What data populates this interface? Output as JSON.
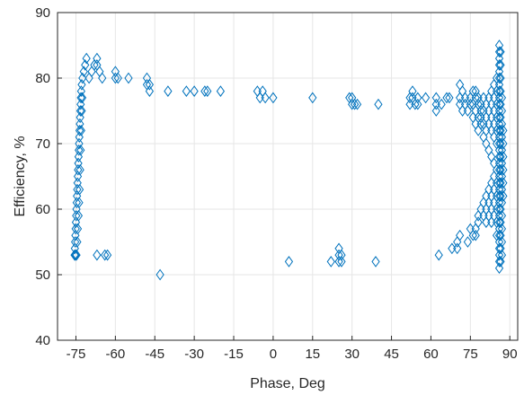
{
  "chart_data": {
    "type": "scatter",
    "title": "",
    "xlabel": "Phase, Deg",
    "ylabel": "Efficiency, %",
    "xlim": [
      -82,
      93
    ],
    "ylim": [
      40,
      90
    ],
    "xticks": [
      -75,
      -60,
      -45,
      -30,
      -15,
      0,
      15,
      30,
      45,
      60,
      75,
      90
    ],
    "xtick_labels": [
      "-75",
      "-60",
      "-45",
      "-30",
      "-15",
      "0",
      "15",
      "30",
      "45",
      "60",
      "75",
      "90"
    ],
    "yticks": [
      40,
      50,
      60,
      70,
      80,
      90
    ],
    "ytick_labels": [
      "40",
      "50",
      "60",
      "70",
      "80",
      "90"
    ],
    "grid": true,
    "marker": "diamond",
    "marker_color": "#0072BD",
    "series": [
      {
        "name": "",
        "points": [
          [
            -75.5,
            53
          ],
          [
            -75.4,
            54
          ],
          [
            -75.3,
            55
          ],
          [
            -75.2,
            56
          ],
          [
            -75.1,
            57
          ],
          [
            -75.0,
            58
          ],
          [
            -74.9,
            59
          ],
          [
            -74.8,
            60
          ],
          [
            -74.7,
            61
          ],
          [
            -74.6,
            62
          ],
          [
            -74.5,
            63
          ],
          [
            -74.4,
            64
          ],
          [
            -74.3,
            65
          ],
          [
            -74.2,
            66
          ],
          [
            -74.1,
            67
          ],
          [
            -74.0,
            68
          ],
          [
            -73.9,
            69
          ],
          [
            -73.8,
            70
          ],
          [
            -73.7,
            71
          ],
          [
            -73.6,
            72
          ],
          [
            -73.5,
            73
          ],
          [
            -73.4,
            74
          ],
          [
            -73.3,
            75
          ],
          [
            -73.2,
            76
          ],
          [
            -73.1,
            77
          ],
          [
            -73.0,
            78
          ],
          [
            -72.8,
            79
          ],
          [
            -72.5,
            80
          ],
          [
            -75.2,
            53
          ],
          [
            -74.8,
            53
          ],
          [
            -74.5,
            55
          ],
          [
            -74.3,
            57
          ],
          [
            -74.0,
            59
          ],
          [
            -73.8,
            61
          ],
          [
            -73.6,
            63
          ],
          [
            -73.4,
            66
          ],
          [
            -73.2,
            69
          ],
          [
            -73.0,
            72
          ],
          [
            -72.8,
            75
          ],
          [
            -72.6,
            77
          ],
          [
            -72,
            81
          ],
          [
            -71.5,
            82
          ],
          [
            -71,
            83
          ],
          [
            -70,
            80
          ],
          [
            -69,
            81
          ],
          [
            -68,
            82
          ],
          [
            -67,
            82
          ],
          [
            -67,
            83
          ],
          [
            -66,
            81
          ],
          [
            -65,
            80
          ],
          [
            -67,
            53
          ],
          [
            -64,
            53
          ],
          [
            -63,
            53
          ],
          [
            -60,
            80
          ],
          [
            -60,
            81
          ],
          [
            -59,
            80
          ],
          [
            -55,
            80
          ],
          [
            -48,
            80
          ],
          [
            -48,
            79
          ],
          [
            -47,
            79
          ],
          [
            -47,
            78
          ],
          [
            -43,
            50
          ],
          [
            -40,
            78
          ],
          [
            -33,
            78
          ],
          [
            -30,
            78
          ],
          [
            -26,
            78
          ],
          [
            -25,
            78
          ],
          [
            -20,
            78
          ],
          [
            -6,
            78
          ],
          [
            -5,
            77
          ],
          [
            -4,
            78
          ],
          [
            -3,
            77
          ],
          [
            0,
            77
          ],
          [
            6,
            52
          ],
          [
            15,
            77
          ],
          [
            22,
            52
          ],
          [
            25,
            52
          ],
          [
            25,
            53
          ],
          [
            25,
            54
          ],
          [
            26,
            53
          ],
          [
            26,
            52
          ],
          [
            29,
            77
          ],
          [
            30,
            77
          ],
          [
            30,
            76
          ],
          [
            31,
            76
          ],
          [
            32,
            76
          ],
          [
            39,
            52
          ],
          [
            40,
            76
          ],
          [
            52,
            77
          ],
          [
            52,
            76
          ],
          [
            53,
            78
          ],
          [
            53,
            77
          ],
          [
            54,
            76
          ],
          [
            55,
            76
          ],
          [
            55,
            77
          ],
          [
            58,
            77
          ],
          [
            62,
            77
          ],
          [
            62,
            76
          ],
          [
            62,
            75
          ],
          [
            63,
            53
          ],
          [
            64,
            76
          ],
          [
            66,
            77
          ],
          [
            67,
            77
          ],
          [
            68,
            54
          ],
          [
            70,
            54
          ],
          [
            70,
            55
          ],
          [
            71,
            76
          ],
          [
            71,
            77
          ],
          [
            71,
            79
          ],
          [
            71,
            56
          ],
          [
            72,
            78
          ],
          [
            72,
            75
          ],
          [
            73,
            77
          ],
          [
            73,
            76
          ],
          [
            74,
            75
          ],
          [
            74,
            55
          ],
          [
            75,
            77
          ],
          [
            75,
            76
          ],
          [
            75,
            57
          ],
          [
            76,
            78
          ],
          [
            76,
            76
          ],
          [
            76,
            74
          ],
          [
            76,
            56
          ],
          [
            77,
            78
          ],
          [
            77,
            77
          ],
          [
            77,
            75
          ],
          [
            77,
            73
          ],
          [
            77,
            57
          ],
          [
            77,
            56
          ],
          [
            78,
            77
          ],
          [
            78,
            76
          ],
          [
            78,
            74
          ],
          [
            78,
            72
          ],
          [
            78,
            59
          ],
          [
            78,
            58
          ],
          [
            79,
            76
          ],
          [
            79,
            75
          ],
          [
            79,
            74
          ],
          [
            79,
            73
          ],
          [
            79,
            60
          ],
          [
            80,
            77
          ],
          [
            80,
            75
          ],
          [
            80,
            73
          ],
          [
            80,
            71
          ],
          [
            80,
            61
          ],
          [
            80,
            59
          ],
          [
            81,
            76
          ],
          [
            81,
            74
          ],
          [
            81,
            72
          ],
          [
            81,
            70
          ],
          [
            81,
            62
          ],
          [
            81,
            60
          ],
          [
            81,
            58
          ],
          [
            82,
            77
          ],
          [
            82,
            75
          ],
          [
            82,
            73
          ],
          [
            82,
            69
          ],
          [
            82,
            63
          ],
          [
            82,
            61
          ],
          [
            82,
            59
          ],
          [
            83,
            78
          ],
          [
            83,
            76
          ],
          [
            83,
            74
          ],
          [
            83,
            72
          ],
          [
            83,
            68
          ],
          [
            83,
            64
          ],
          [
            83,
            62
          ],
          [
            83,
            60
          ],
          [
            83,
            58
          ],
          [
            84,
            79
          ],
          [
            84,
            77
          ],
          [
            84,
            75
          ],
          [
            84,
            73
          ],
          [
            84,
            71
          ],
          [
            84,
            67
          ],
          [
            84,
            65
          ],
          [
            84,
            63
          ],
          [
            84,
            61
          ],
          [
            84,
            59
          ],
          [
            85,
            80
          ],
          [
            85,
            78
          ],
          [
            85,
            76
          ],
          [
            85,
            74
          ],
          [
            85,
            72
          ],
          [
            85,
            70
          ],
          [
            85,
            66
          ],
          [
            85,
            64
          ],
          [
            85,
            62
          ],
          [
            85,
            60
          ],
          [
            85,
            58
          ],
          [
            85,
            56
          ],
          [
            86,
            85
          ],
          [
            86,
            84
          ],
          [
            86,
            83
          ],
          [
            86,
            82
          ],
          [
            86,
            81
          ],
          [
            86,
            80
          ],
          [
            86,
            79
          ],
          [
            86,
            78
          ],
          [
            86,
            77
          ],
          [
            86,
            76
          ],
          [
            86,
            75
          ],
          [
            86,
            74
          ],
          [
            86,
            73
          ],
          [
            86,
            72
          ],
          [
            86,
            71
          ],
          [
            86,
            70
          ],
          [
            86,
            69
          ],
          [
            86,
            68
          ],
          [
            86,
            67
          ],
          [
            86,
            66
          ],
          [
            86,
            65
          ],
          [
            86,
            64
          ],
          [
            86,
            63
          ],
          [
            86,
            62
          ],
          [
            86,
            61
          ],
          [
            86,
            60
          ],
          [
            86,
            59
          ],
          [
            86,
            58
          ],
          [
            86,
            57
          ],
          [
            86,
            56
          ],
          [
            86,
            55
          ],
          [
            86,
            54
          ],
          [
            86,
            53
          ],
          [
            86,
            52
          ],
          [
            86,
            51
          ],
          [
            86.5,
            84
          ],
          [
            86.5,
            82
          ],
          [
            86.5,
            80
          ],
          [
            86.5,
            78
          ],
          [
            86.5,
            76
          ],
          [
            86.5,
            74
          ],
          [
            86.5,
            72
          ],
          [
            86.5,
            70
          ],
          [
            86.5,
            68
          ],
          [
            86.5,
            66
          ],
          [
            86.5,
            64
          ],
          [
            86.5,
            62
          ],
          [
            86.5,
            60
          ],
          [
            86.5,
            58
          ],
          [
            86.5,
            56
          ],
          [
            86.5,
            54
          ],
          [
            86.5,
            52
          ],
          [
            87,
            77
          ],
          [
            87,
            75
          ],
          [
            87,
            73
          ],
          [
            87,
            71
          ],
          [
            87,
            69
          ],
          [
            87,
            67
          ],
          [
            87,
            65
          ],
          [
            87,
            63
          ],
          [
            87,
            61
          ],
          [
            87,
            59
          ],
          [
            87,
            57
          ],
          [
            87,
            55
          ],
          [
            87,
            53
          ],
          [
            87.5,
            72
          ],
          [
            87.5,
            70
          ],
          [
            87.5,
            68
          ],
          [
            87.5,
            66
          ],
          [
            87.5,
            64
          ],
          [
            87.5,
            62
          ]
        ]
      }
    ]
  }
}
